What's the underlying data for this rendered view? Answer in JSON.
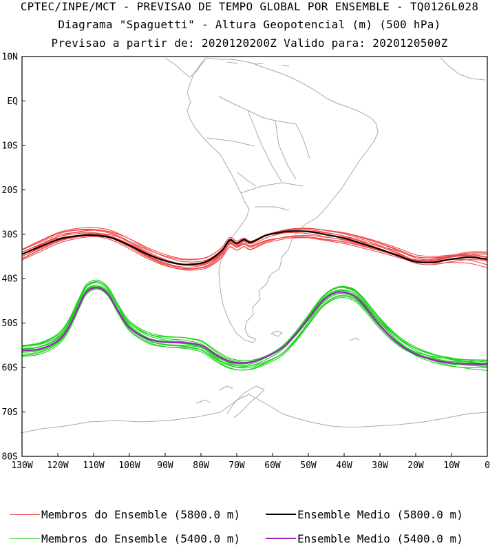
{
  "header": {
    "line1": "CPTEC/INPE/MCT - PREVISAO DE TEMPO GLOBAL POR ENSEMBLE - TQ0126L028",
    "line2": "Diagrama \"Spaguetti\" - Altura Geopotencial (m) (500 hPa)",
    "line3": "Previsao a partir de: 2020120200Z  Valido para: 2020120500Z"
  },
  "map": {
    "lat_range": [
      -80,
      10
    ],
    "lon_range": [
      -130,
      0
    ],
    "lat_labels": [
      {
        "lat": 10,
        "text": "10N"
      },
      {
        "lat": 0,
        "text": "EQ"
      },
      {
        "lat": -10,
        "text": "10S"
      },
      {
        "lat": -20,
        "text": "20S"
      },
      {
        "lat": -30,
        "text": "30S"
      },
      {
        "lat": -40,
        "text": "40S"
      },
      {
        "lat": -50,
        "text": "50S"
      },
      {
        "lat": -60,
        "text": "60S"
      },
      {
        "lat": -70,
        "text": "70S"
      },
      {
        "lat": -80,
        "text": "80S"
      }
    ],
    "lon_labels": [
      {
        "lon": -130,
        "text": "130W"
      },
      {
        "lon": -120,
        "text": "120W"
      },
      {
        "lon": -110,
        "text": "110W"
      },
      {
        "lon": -100,
        "text": "100W"
      },
      {
        "lon": -90,
        "text": "90W"
      },
      {
        "lon": -80,
        "text": "80W"
      },
      {
        "lon": -70,
        "text": "70W"
      },
      {
        "lon": -60,
        "text": "60W"
      },
      {
        "lon": -50,
        "text": "50W"
      },
      {
        "lon": -40,
        "text": "40W"
      },
      {
        "lon": -30,
        "text": "30W"
      },
      {
        "lon": -20,
        "text": "20W"
      },
      {
        "lon": -10,
        "text": "10W"
      },
      {
        "lon": 0,
        "text": "0"
      }
    ],
    "colors": {
      "members_5800": "#f04a4a",
      "mean_5800": "#000000",
      "members_5400": "#1ed21e",
      "mean_5400": "#a020c0",
      "coast": "#a8a8a8"
    },
    "contour_5800_mean": [
      [
        -130,
        -34.5
      ],
      [
        -125,
        -32.8
      ],
      [
        -120,
        -31.2
      ],
      [
        -115,
        -30.4
      ],
      [
        -110,
        -30.2
      ],
      [
        -105,
        -30.8
      ],
      [
        -100,
        -32.5
      ],
      [
        -95,
        -34.5
      ],
      [
        -90,
        -36.0
      ],
      [
        -85,
        -36.8
      ],
      [
        -80,
        -36.5
      ],
      [
        -77,
        -35.5
      ],
      [
        -74,
        -33.5
      ],
      [
        -72,
        -31.3
      ],
      [
        -70,
        -32.0
      ],
      [
        -68,
        -31.2
      ],
      [
        -66,
        -31.8
      ],
      [
        -62,
        -30.3
      ],
      [
        -58,
        -29.6
      ],
      [
        -55,
        -29.3
      ],
      [
        -50,
        -29.4
      ],
      [
        -45,
        -30.1
      ],
      [
        -40,
        -30.9
      ],
      [
        -35,
        -32.1
      ],
      [
        -30,
        -33.4
      ],
      [
        -25,
        -34.8
      ],
      [
        -20,
        -36.2
      ],
      [
        -15,
        -36.3
      ],
      [
        -10,
        -35.6
      ],
      [
        -5,
        -35.2
      ],
      [
        0,
        -35.6
      ]
    ],
    "contour_5400_mean": [
      [
        -130,
        -56.2
      ],
      [
        -125,
        -55.8
      ],
      [
        -120,
        -54.0
      ],
      [
        -117,
        -51.0
      ],
      [
        -114,
        -46.0
      ],
      [
        -112,
        -43.0
      ],
      [
        -109,
        -42.0
      ],
      [
        -106,
        -43.5
      ],
      [
        -103,
        -47.5
      ],
      [
        -100,
        -51.0
      ],
      [
        -95,
        -53.5
      ],
      [
        -90,
        -54.3
      ],
      [
        -85,
        -54.4
      ],
      [
        -80,
        -55.0
      ],
      [
        -76,
        -57.0
      ],
      [
        -72,
        -58.6
      ],
      [
        -68,
        -59.0
      ],
      [
        -64,
        -58.3
      ],
      [
        -58,
        -56.0
      ],
      [
        -54,
        -53.0
      ],
      [
        -50,
        -49.0
      ],
      [
        -46,
        -45.0
      ],
      [
        -42,
        -43.1
      ],
      [
        -38,
        -43.5
      ],
      [
        -35,
        -45.5
      ],
      [
        -30,
        -50.5
      ],
      [
        -25,
        -54.5
      ],
      [
        -20,
        -57.0
      ],
      [
        -15,
        -58.3
      ],
      [
        -10,
        -59.0
      ],
      [
        -5,
        -59.2
      ],
      [
        0,
        -59.2
      ]
    ],
    "member_offsets_5800": [
      [
        -0.6,
        -1.1,
        1.5
      ],
      [
        0.5,
        0.8,
        -1.2
      ],
      [
        -0.3,
        1.6,
        0.8
      ],
      [
        0.7,
        -0.9,
        -1.8
      ],
      [
        -0.8,
        0.4,
        1.1
      ],
      [
        0.3,
        -1.4,
        -0.6
      ],
      [
        -0.2,
        0.9,
        1.9
      ],
      [
        0.9,
        0.2,
        -0.9
      ],
      [
        -0.5,
        -0.6,
        0.4
      ],
      [
        0.2,
        1.2,
        -1.4
      ],
      [
        -0.9,
        -0.2,
        2.1
      ],
      [
        0.6,
        0.6,
        -0.3
      ]
    ],
    "member_offsets_5400": [
      [
        -0.6,
        -1.2,
        0.6
      ],
      [
        0.5,
        0.9,
        -0.5
      ],
      [
        -0.3,
        1.5,
        0.3
      ],
      [
        0.7,
        -0.7,
        -0.8
      ],
      [
        -0.8,
        0.5,
        0.9
      ],
      [
        0.4,
        -1.5,
        -0.3
      ],
      [
        -0.2,
        0.8,
        0.8
      ],
      [
        0.9,
        0.3,
        -0.6
      ],
      [
        -0.5,
        -0.5,
        0.2
      ],
      [
        0.2,
        1.3,
        -0.9
      ],
      [
        -0.9,
        -0.3,
        0.5
      ],
      [
        0.6,
        0.4,
        -0.2
      ]
    ]
  },
  "legend": {
    "members_5800": "Membros do Ensemble (5800.0 m)",
    "mean_5800": "Ensemble Medio (5800.0 m)",
    "members_5400": "Membros do Ensemble (5400.0 m)",
    "mean_5400": "Ensemble Medio (5400.0 m)"
  }
}
